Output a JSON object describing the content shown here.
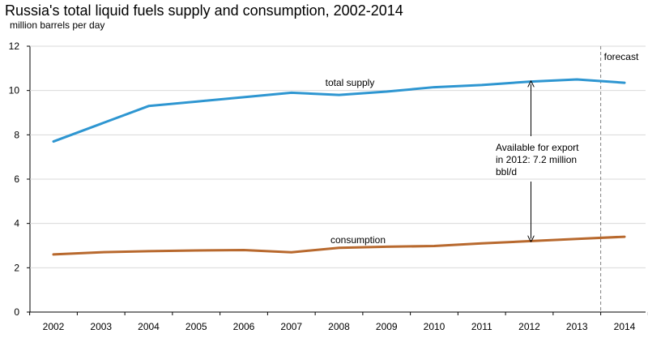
{
  "chart_data": {
    "type": "line",
    "title": "Russia's total liquid fuels supply and consumption, 2002-2014",
    "ylabel": "million barrels  per day",
    "xlabel": "",
    "categories": [
      "2002",
      "2003",
      "2004",
      "2005",
      "2006",
      "2007",
      "2008",
      "2009",
      "2010",
      "2011",
      "2012",
      "2013",
      "2014"
    ],
    "ylim": [
      0,
      12
    ],
    "yticks": [
      0,
      2,
      4,
      6,
      8,
      10,
      12
    ],
    "series": [
      {
        "name": "total supply",
        "color": "#2e96d1",
        "values": [
          7.7,
          8.5,
          9.3,
          9.5,
          9.7,
          9.9,
          9.8,
          9.95,
          10.15,
          10.25,
          10.4,
          10.5,
          10.35
        ]
      },
      {
        "name": "consumption",
        "color": "#b8692e",
        "values": [
          2.6,
          2.7,
          2.75,
          2.78,
          2.8,
          2.7,
          2.9,
          2.95,
          2.98,
          3.1,
          3.2,
          3.3,
          3.4
        ]
      }
    ],
    "forecast_label": "forecast",
    "forecast_start_year": "2013",
    "annotation": {
      "lines": [
        "Available  for export",
        "in 2012: 7.2 million",
        "bbl/d"
      ],
      "year": "2012",
      "from": 3.2,
      "to": 10.4
    }
  }
}
